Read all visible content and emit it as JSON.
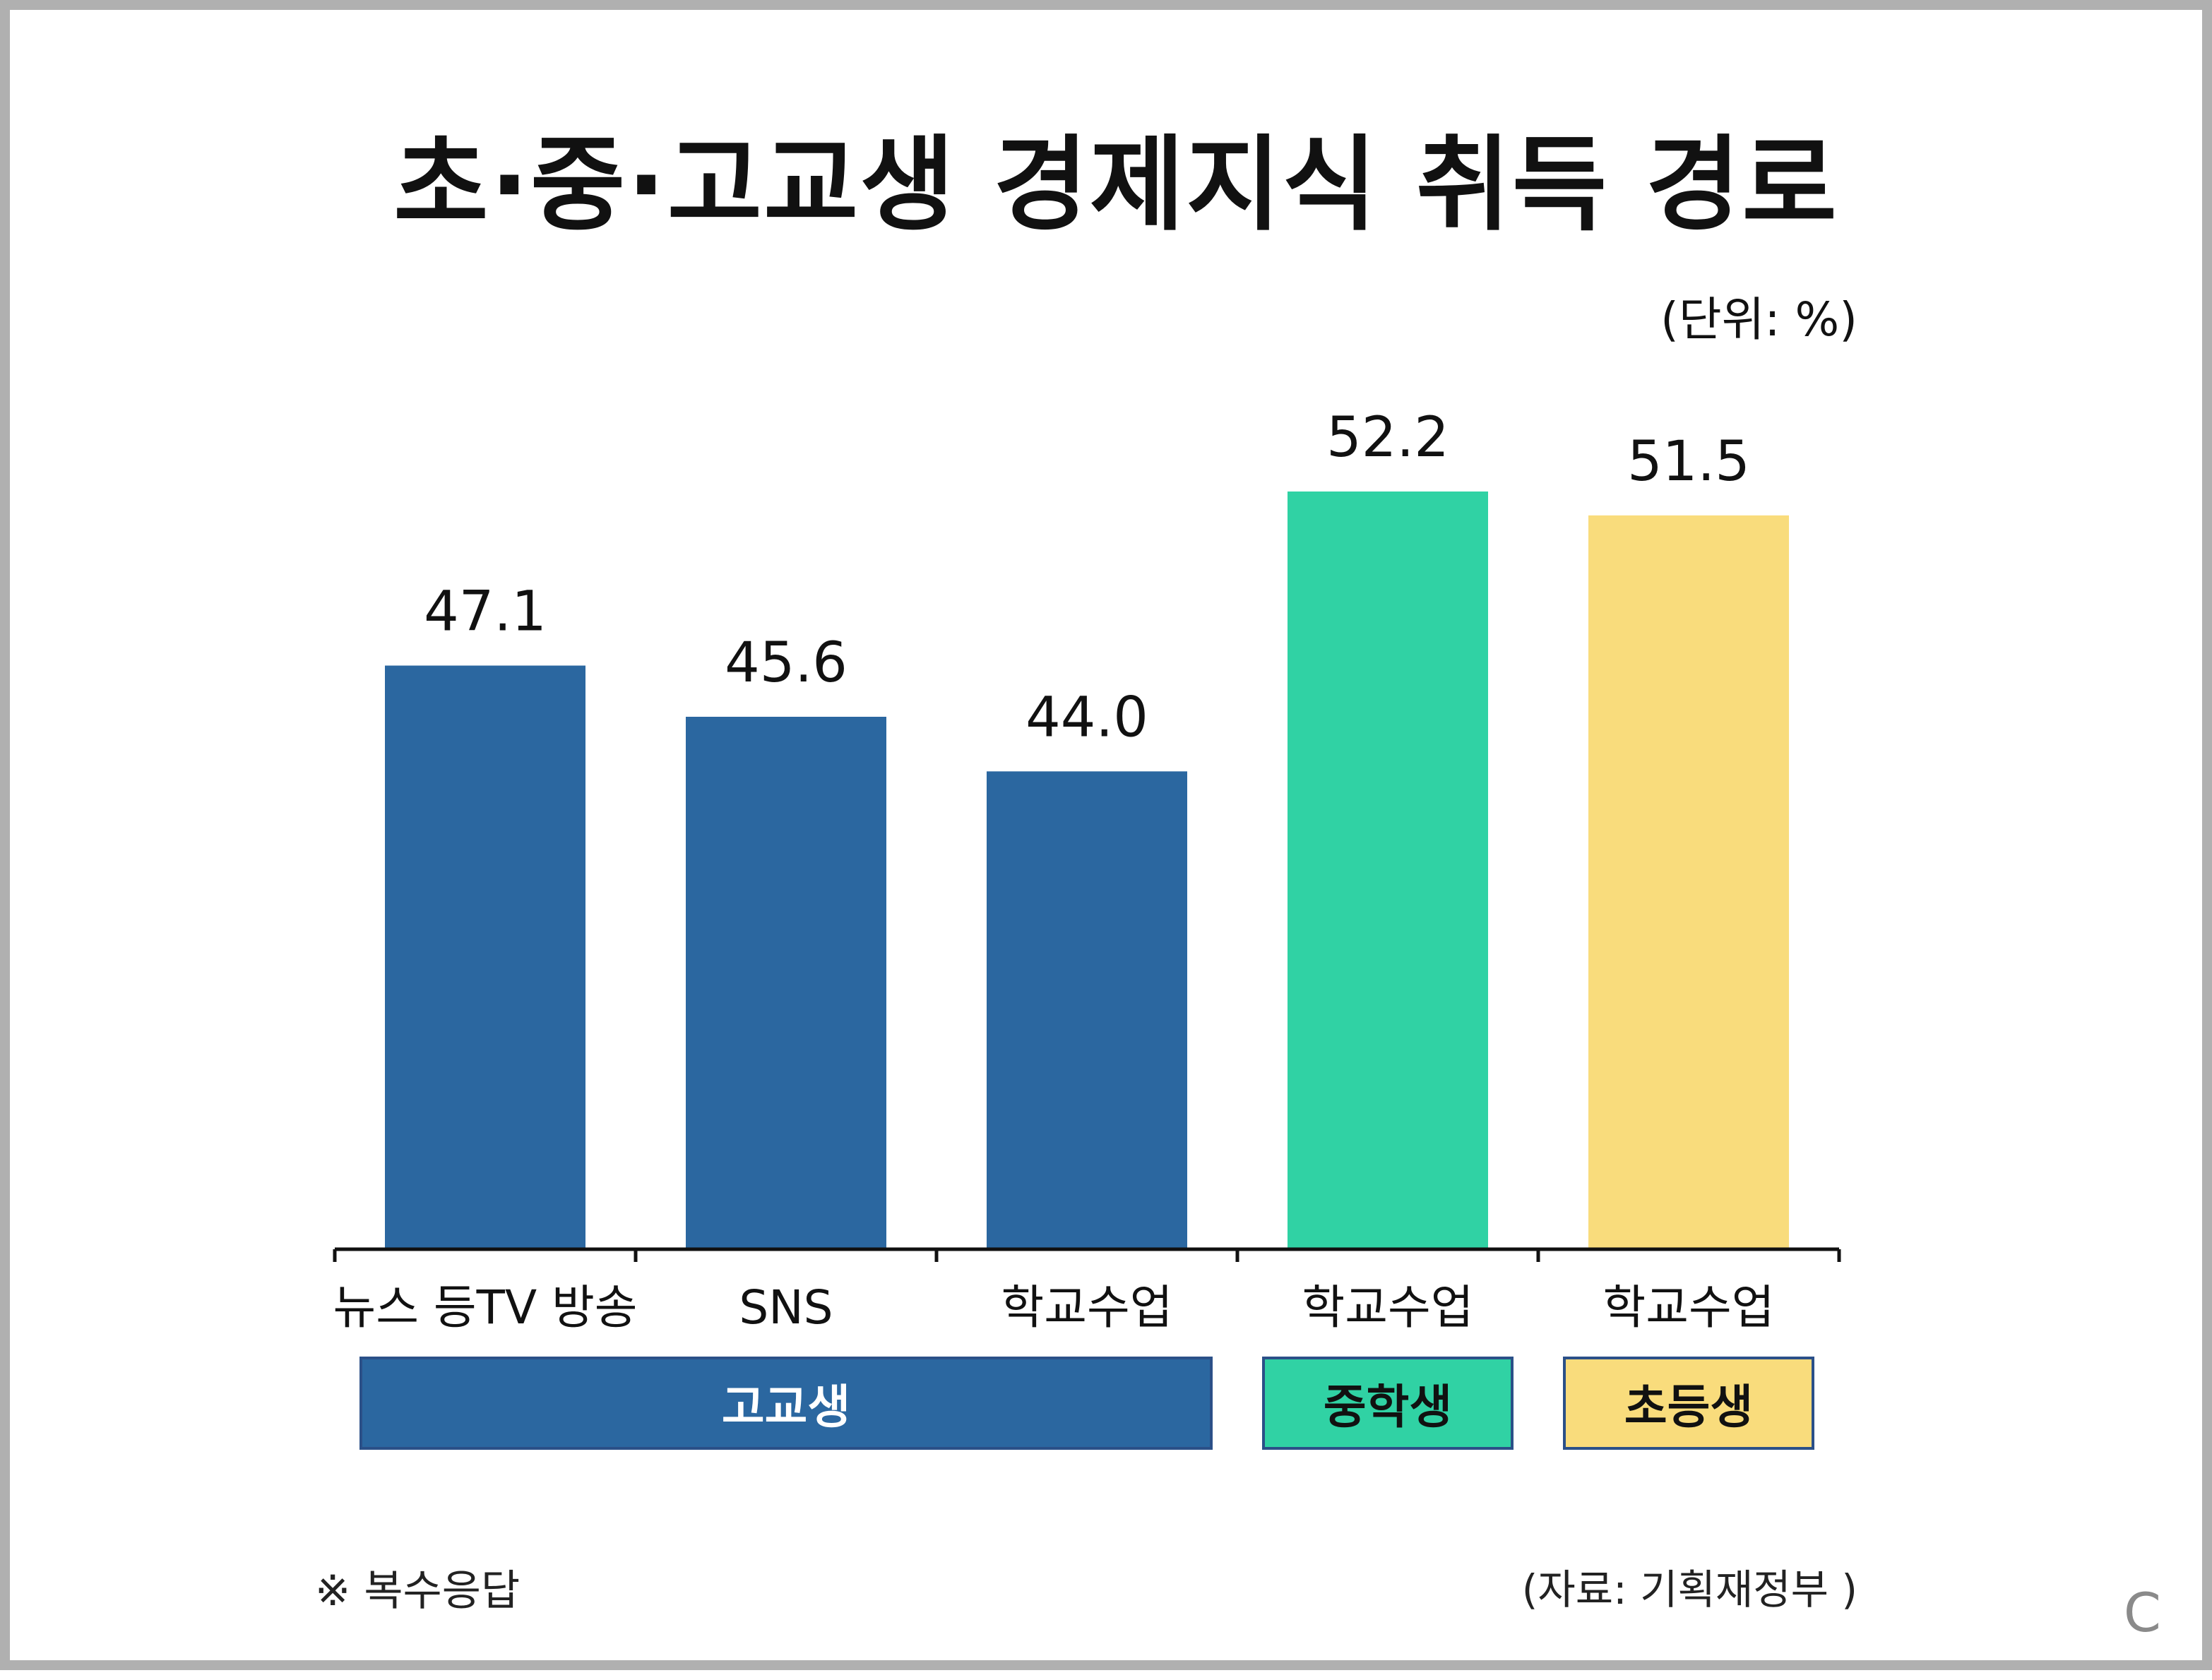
{
  "title": "초·중·고교생 경제지식 취득 경로",
  "unit": "(단위: %)",
  "footnote": "※ 복수응답",
  "source": "(자료: 기획재정부 )",
  "corner_mark": "C",
  "colors": {
    "high": "#2b67a0",
    "middle": "#30d2a4",
    "elementary": "#f9dc7c",
    "axis": "#111111"
  },
  "groups": [
    {
      "label": "고교생",
      "color": "#2b67a0",
      "text_color": "#ffffff"
    },
    {
      "label": "중학생",
      "color": "#30d2a4",
      "text_color": "#111111"
    },
    {
      "label": "초등생",
      "color": "#f9dc7c",
      "text_color": "#111111"
    }
  ],
  "chart_data": {
    "type": "bar",
    "categories": [
      "뉴스 등TV 방송",
      "SNS",
      "학교수업",
      "학교수업",
      "학교수업"
    ],
    "values": [
      47.1,
      45.6,
      44.0,
      52.2,
      51.5
    ],
    "value_labels": [
      "47.1",
      "45.6",
      "44.0",
      "52.2",
      "51.5"
    ],
    "bar_colors": [
      "#2b67a0",
      "#2b67a0",
      "#2b67a0",
      "#30d2a4",
      "#f9dc7c"
    ],
    "groups": [
      "고교생",
      "고교생",
      "고교생",
      "중학생",
      "초등생"
    ],
    "ylim": [
      30,
      60
    ],
    "grid": false,
    "legend": "none"
  }
}
